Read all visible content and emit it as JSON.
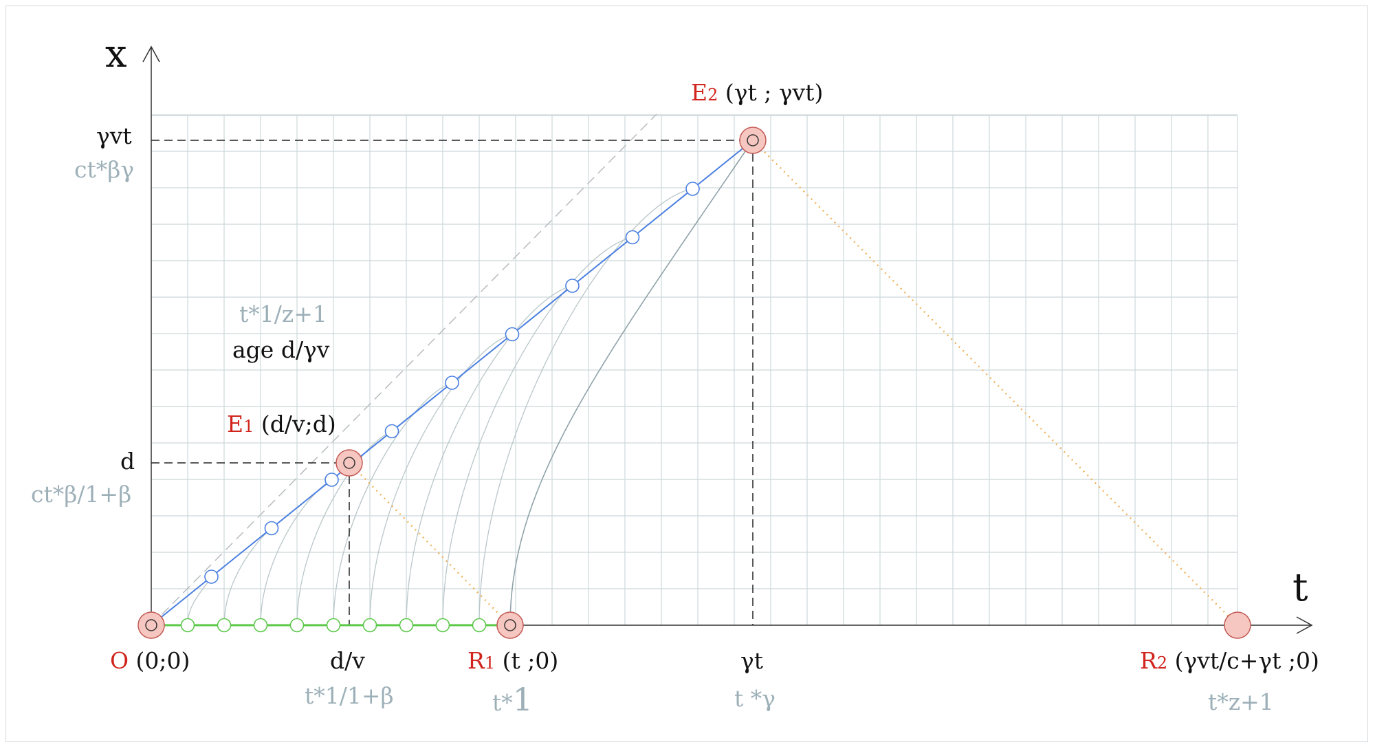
{
  "axes": {
    "x_name": "x",
    "t_name": "t"
  },
  "y_ticks": {
    "top": "γvt",
    "top_sub": "ct*βγ",
    "mid": "d",
    "mid_sub": "ct*β/1+β"
  },
  "x_ticks": {
    "dv": "d/v",
    "dv_sub": "t*1/1+β",
    "r1_sub": "t*",
    "r1_sub_big": "1",
    "gt": "γt",
    "gt_sub": "t *γ",
    "r2_sub": "t*z+1"
  },
  "points": {
    "O": {
      "name": "O",
      "coords": " (0;0)"
    },
    "E1": {
      "name": "E",
      "sub": "1",
      "coords": " (d/v;d)"
    },
    "E2": {
      "name": "E",
      "sub": "2",
      "coords": " (γt ; γvt)"
    },
    "R1": {
      "name": "R",
      "sub": "1",
      "coords": " (t ;0)"
    },
    "R2": {
      "name": "R",
      "sub": "2",
      "coords": " (γvt/c+γt ;0)"
    }
  },
  "annotations": {
    "t_ratio": "t*1/z+1",
    "age": "age d/γv"
  },
  "colors": {
    "grid": "#cdd8da",
    "worldline": "#4a7fe0",
    "receiver": "#5cc84a",
    "light_dotted": "#f0b45a",
    "event_fill": "#f6c6c0",
    "event_stroke": "#c45a55",
    "red_label": "#d0241c",
    "grey_label": "#9db0b8"
  }
}
